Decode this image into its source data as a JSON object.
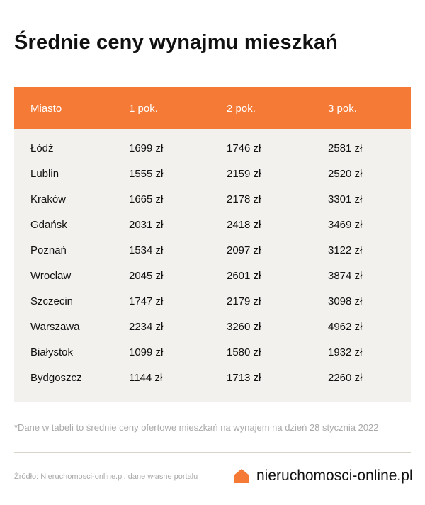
{
  "title": "Średnie ceny wynajmu mieszkań",
  "table": {
    "headers": [
      "Miasto",
      "1 pok.",
      "2 pok.",
      "3 pok."
    ],
    "rows": [
      [
        "Łódź",
        "1699 zł",
        "1746 zł",
        "2581 zł"
      ],
      [
        "Lublin",
        "1555 zł",
        "2159 zł",
        "2520 zł"
      ],
      [
        "Kraków",
        "1665 zł",
        "2178 zł",
        "3301 zł"
      ],
      [
        "Gdańsk",
        "2031 zł",
        "2418 zł",
        "3469 zł"
      ],
      [
        "Poznań",
        "1534 zł",
        "2097 zł",
        "3122 zł"
      ],
      [
        "Wrocław",
        "2045 zł",
        "2601 zł",
        "3874 zł"
      ],
      [
        "Szczecin",
        "1747 zł",
        "2179 zł",
        "3098 zł"
      ],
      [
        "Warszawa",
        "2234 zł",
        "3260 zł",
        "4962 zł"
      ],
      [
        "Białystok",
        "1099 zł",
        "1580 zł",
        "1932 zł"
      ],
      [
        "Bydgoszcz",
        "1144 zł",
        "1713 zł",
        "2260 zł"
      ]
    ]
  },
  "footnote": "*Dane w tabeli to średnie ceny ofertowe mieszkań na wynajem na dzień 28 stycznia 2022",
  "source": "Źródło: Nieruchomosci-online.pl, dane własne portalu",
  "brand": {
    "name": "nieruchomosci-online.pl",
    "icon": "house-icon",
    "color": "#f47a36"
  }
}
